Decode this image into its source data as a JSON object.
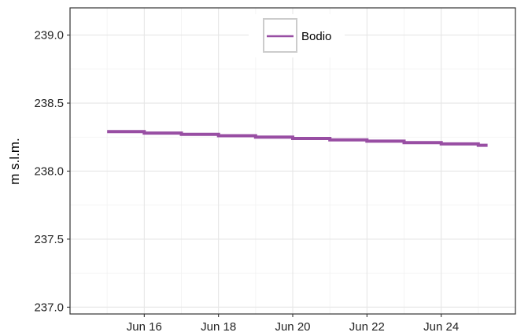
{
  "chart_data": {
    "type": "line",
    "title": "",
    "xlabel": "",
    "ylabel": "m s.l.m.",
    "x_ticks": [
      "Jun 16",
      "Jun 18",
      "Jun 20",
      "Jun 22",
      "Jun 24"
    ],
    "y_ticks": [
      "237.0",
      "237.5",
      "238.0",
      "238.5",
      "239.0"
    ],
    "xlim": [
      "2023-06-14",
      "2023-06-26"
    ],
    "ylim": [
      236.95,
      239.2
    ],
    "grid": true,
    "legend_position": "top-center",
    "series": [
      {
        "name": "Bodio",
        "color": "#984ea3",
        "step": true,
        "x": [
          "2023-06-15",
          "2023-06-16",
          "2023-06-17",
          "2023-06-18",
          "2023-06-19",
          "2023-06-20",
          "2023-06-21",
          "2023-06-22",
          "2023-06-23",
          "2023-06-24",
          "2023-06-25"
        ],
        "values": [
          238.29,
          238.28,
          238.27,
          238.26,
          238.25,
          238.24,
          238.23,
          238.22,
          238.21,
          238.2,
          238.19
        ],
        "x_end": "2023-06-25T06:00"
      }
    ]
  }
}
